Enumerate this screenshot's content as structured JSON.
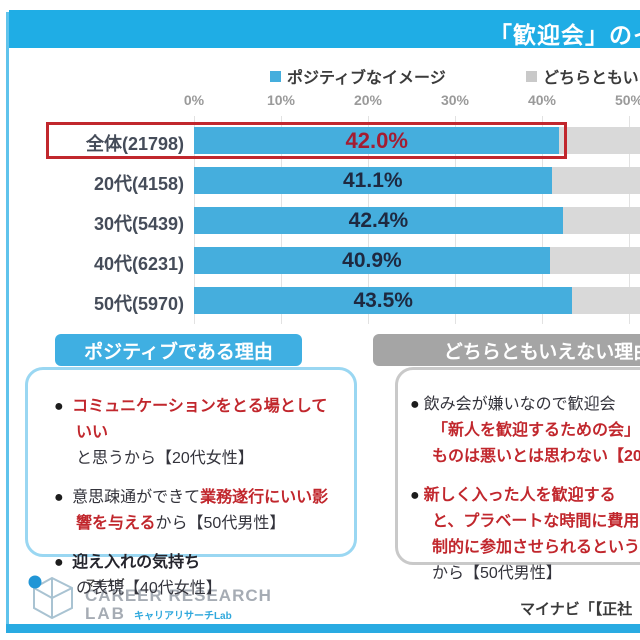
{
  "title": {
    "text": "「歓迎会」のイメージ"
  },
  "legend": {
    "positive": {
      "label": "ポジティブなイメージ",
      "color": "#45aedd"
    },
    "neutral": {
      "label": "どちらともいえない",
      "color": "#c9c9c9"
    }
  },
  "chart_data": {
    "type": "bar",
    "orientation": "horizontal",
    "title": "「歓迎会」のイメージ",
    "categories": [
      "全体(21798)",
      "20代(4158)",
      "30代(5439)",
      "40代(6231)",
      "50代(5970)"
    ],
    "series": [
      {
        "name": "ポジティブなイメージ",
        "color": "#45aedd",
        "values": [
          42.0,
          41.1,
          42.4,
          40.9,
          43.5
        ]
      },
      {
        "name": "どちらともいえない",
        "color": "#d9d9d9",
        "values": null,
        "note": "gray bars run past the right edge of the image; end values not visible"
      }
    ],
    "value_labels": [
      "42.0%",
      "41.1%",
      "42.4%",
      "40.9%",
      "43.5%"
    ],
    "x_ticks": [
      "0%",
      "10%",
      "20%",
      "30%",
      "40%",
      "50%"
    ],
    "xlim": [
      0,
      50
    ],
    "grid": true,
    "legend_position": "top",
    "highlighted_category": "全体(21798)",
    "highlight_color": "#c1272d"
  },
  "sections": {
    "positive": {
      "header": "ポジティブである理由",
      "b1": {
        "red": "コミュニケーションをとる場としていい",
        "dark": "と思うから【20代女性】"
      },
      "b2": {
        "dark1": "意思疎通ができて",
        "red": "業務遂行にいい影響を与える",
        "dark2": "から【50代男性】"
      },
      "b3": {
        "bold": "迎え入れの気持ち",
        "dark": "の表現【40代女性】"
      }
    },
    "neutral": {
      "header": "どちらともいえない理由",
      "b1": {
        "line1_dark": "飲み会が嫌いなので歓迎会",
        "line2_red": "「新人を歓迎するための会」と",
        "line3_red": "ものは悪いとは思わない【20"
      },
      "b2": {
        "line1_red": "新しく入った人を歓迎する",
        "line2_red": "と、プラベートな時間に費用を",
        "line3_red": "制的に参加させられるという",
        "line4_dark": "から【50代男性】"
      }
    }
  },
  "footer": {
    "brand_small": "マイナビ",
    "brand_line1": "CAREER RESEARCH",
    "brand_line2": "LAB",
    "brand_jp": "キャリアリサーチLab",
    "source_text": "マイナビ「【正社"
  },
  "glyphs": {
    "bullet": "●"
  }
}
